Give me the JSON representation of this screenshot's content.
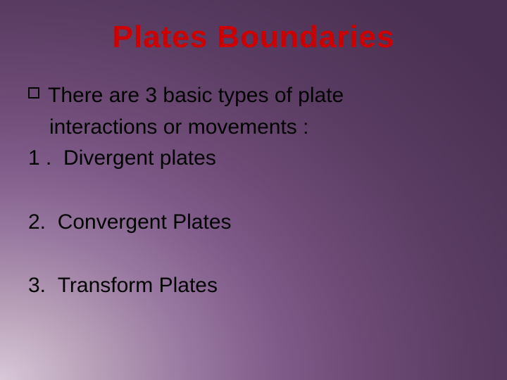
{
  "title": {
    "text": "Plates Boundaries",
    "color": "#cc0000",
    "fontsize": 44
  },
  "intro": {
    "line1": "There are 3 basic types of plate",
    "line2": "interactions or movements :",
    "fontsize": 30
  },
  "items": [
    {
      "number": "1 .",
      "label": "Divergent plates"
    },
    {
      "number": "2.",
      "label": "Convergent Plates"
    },
    {
      "number": "3.",
      "label": "Transform Plates"
    }
  ],
  "body_fontsize": 30,
  "body_color": "#000000"
}
